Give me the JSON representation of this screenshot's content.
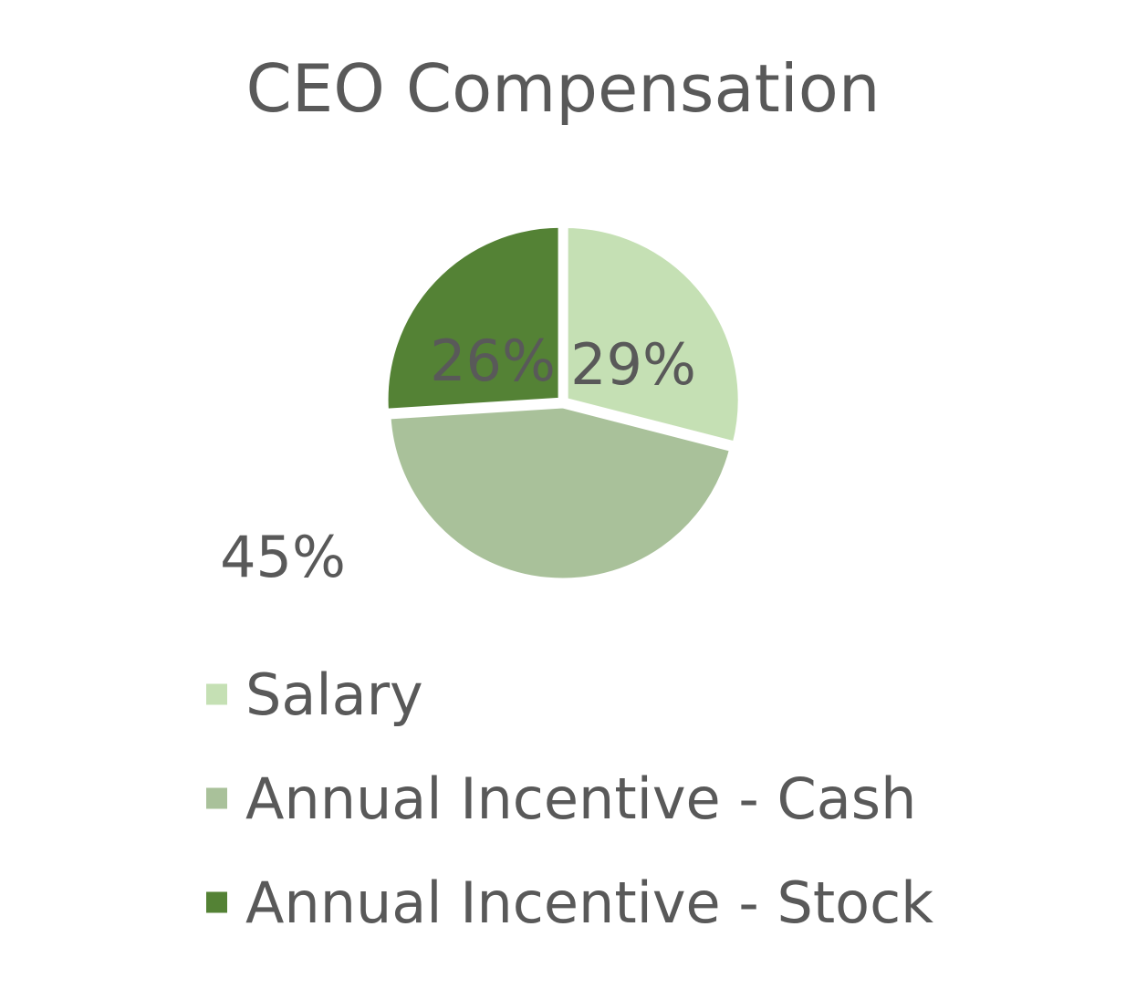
{
  "chart_data": {
    "type": "pie",
    "title": "CEO Compensation",
    "categories": [
      "Salary",
      "Annual Incentive - Cash",
      "Annual Incentive - Stock"
    ],
    "values": [
      29,
      45,
      26
    ],
    "value_labels": [
      "29%",
      "45%",
      "26%"
    ],
    "colors": [
      "#c5e0b4",
      "#a9c19a",
      "#548235"
    ],
    "start_angle_deg": 0,
    "direction": "clockwise",
    "legend_position": "bottom",
    "grid": false
  },
  "label_color": "#595959",
  "background": "#ffffff"
}
